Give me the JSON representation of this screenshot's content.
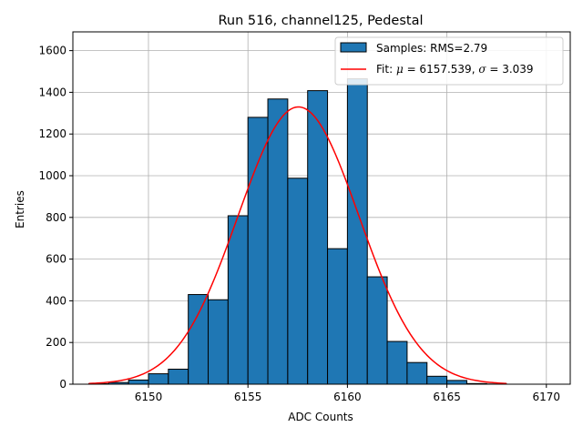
{
  "chart_data": {
    "type": "bar",
    "title": "Run 516, channel125, Pedestal",
    "xlabel": "ADC Counts",
    "ylabel": "Entries",
    "xlim": [
      6146.2,
      6171.2
    ],
    "ylim": [
      0,
      1690
    ],
    "xticks": [
      6150,
      6155,
      6160,
      6165,
      6170
    ],
    "yticks": [
      0,
      200,
      400,
      600,
      800,
      1000,
      1200,
      1400,
      1600
    ],
    "grid": true,
    "legend_position": "top-right",
    "bar_color": "#1f77b4",
    "fit_color": "#ff0000",
    "histogram": {
      "name": "Samples: RMS=2.79",
      "bin_edges": [
        6147,
        6148,
        6149,
        6150,
        6151,
        6152,
        6153,
        6154,
        6155,
        6156,
        6157,
        6158,
        6159,
        6160,
        6161,
        6162,
        6163,
        6164,
        6165,
        6166,
        6167,
        6168
      ],
      "counts": [
        2,
        8,
        20,
        50,
        72,
        430,
        405,
        808,
        1280,
        1368,
        988,
        1408,
        650,
        1465,
        515,
        205,
        104,
        38,
        18,
        3,
        1
      ]
    },
    "fit": {
      "name_prefix": "Fit: ",
      "mu_symbol": "μ",
      "mu_text": " = 6157.539, ",
      "sigma_symbol": "σ",
      "sigma_text": " = 3.039",
      "mu": 6157.539,
      "sigma": 3.039,
      "amplitude": 1330,
      "x_range": [
        6147,
        6168
      ]
    }
  }
}
